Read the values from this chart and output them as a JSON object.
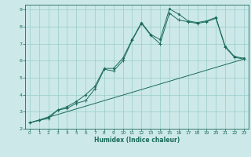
{
  "xlabel": "Humidex (Indice chaleur)",
  "bg_color": "#cce8e8",
  "grid_color": "#99cccc",
  "line_color": "#1a6b5a",
  "xlim": [
    -0.5,
    23.5
  ],
  "ylim": [
    2,
    9.3
  ],
  "xticks": [
    0,
    1,
    2,
    3,
    4,
    5,
    6,
    7,
    8,
    9,
    10,
    11,
    12,
    13,
    14,
    15,
    16,
    17,
    18,
    19,
    20,
    21,
    22,
    23
  ],
  "yticks": [
    2,
    3,
    4,
    5,
    6,
    7,
    8,
    9
  ],
  "line1_y": [
    2.35,
    2.5,
    2.6,
    3.1,
    3.2,
    3.5,
    3.65,
    4.35,
    5.5,
    5.4,
    6.0,
    7.2,
    8.2,
    7.5,
    7.0,
    8.8,
    8.4,
    8.3,
    8.2,
    8.3,
    8.5,
    6.8,
    6.2,
    6.1
  ],
  "line2_y": [
    2.35,
    2.5,
    2.7,
    3.1,
    3.3,
    3.6,
    4.0,
    4.5,
    5.55,
    5.55,
    6.15,
    7.25,
    8.25,
    7.55,
    7.25,
    9.05,
    8.75,
    8.35,
    8.25,
    8.35,
    8.55,
    6.85,
    6.25,
    6.15
  ],
  "line3_x": [
    0,
    23
  ],
  "line3_y": [
    2.35,
    6.1
  ]
}
